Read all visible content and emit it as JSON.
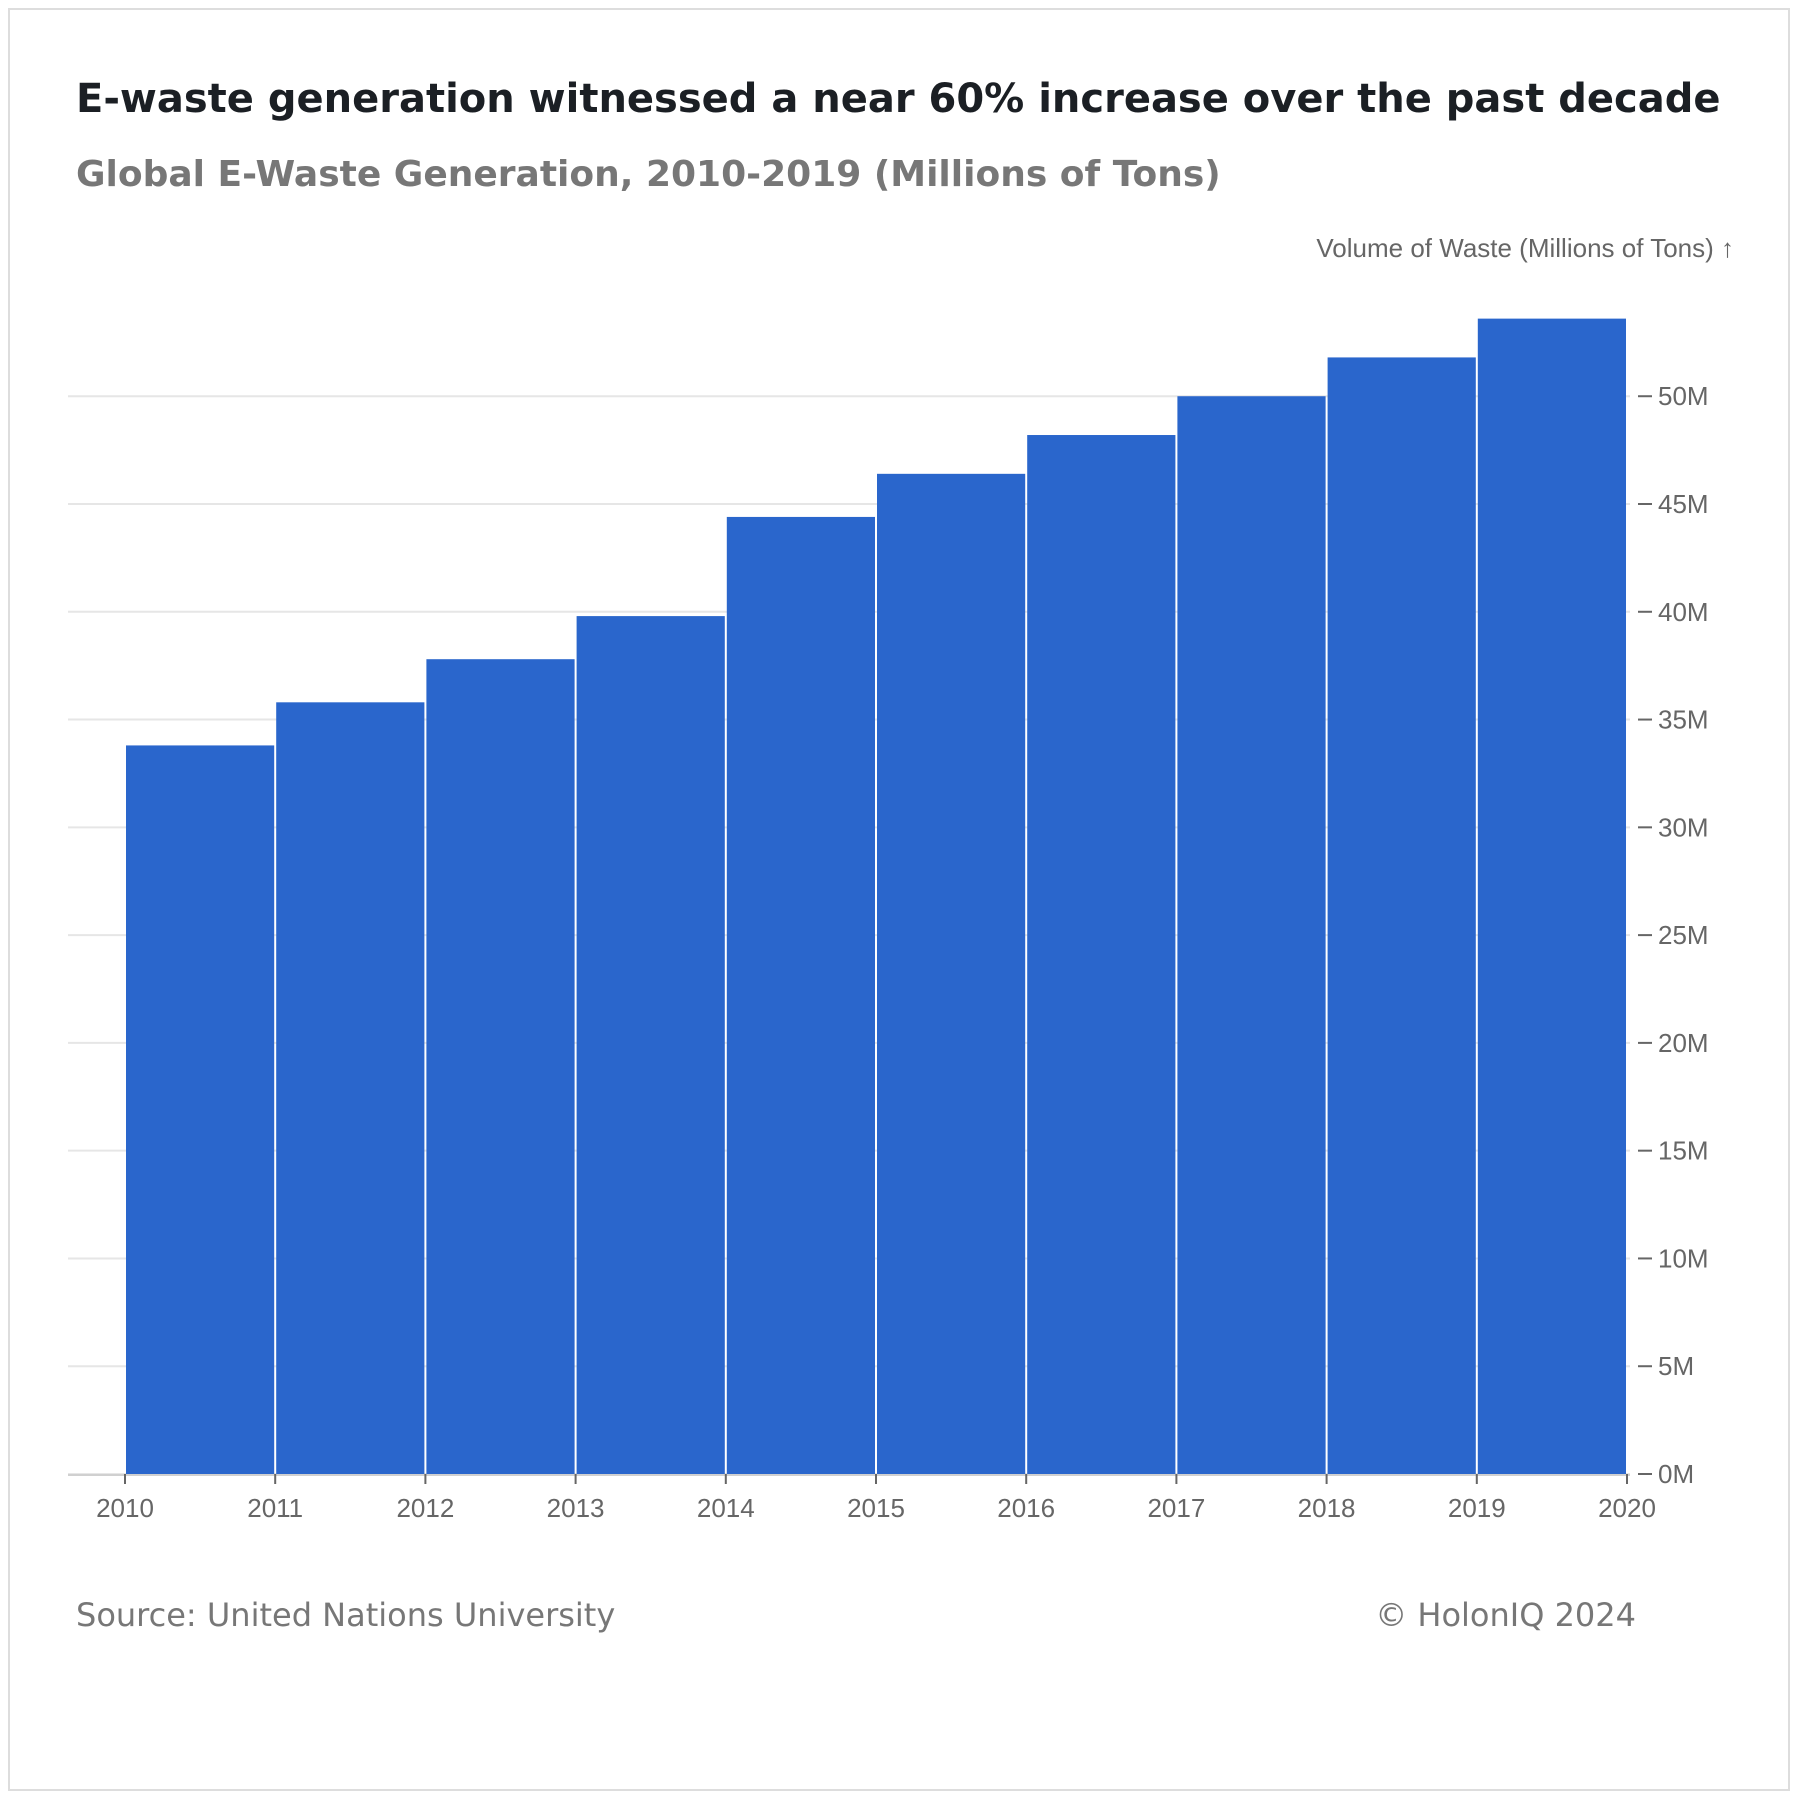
{
  "header": {
    "title": "E-waste generation witnessed a near 60% increase over the past decade",
    "subtitle": "Global E-Waste Generation, 2010-2019 (Millions of Tons)"
  },
  "footer": {
    "source": "Source: United Nations University",
    "copyright": "© HolonIQ 2024"
  },
  "chart_data": {
    "type": "bar",
    "categories": [
      "2010",
      "2011",
      "2012",
      "2013",
      "2014",
      "2015",
      "2016",
      "2017",
      "2018",
      "2019"
    ],
    "values": [
      33.8,
      35.8,
      37.8,
      39.8,
      44.4,
      46.4,
      48.2,
      50.0,
      51.8,
      53.6
    ],
    "x_ticks": [
      "2010",
      "2011",
      "2012",
      "2013",
      "2014",
      "2015",
      "2016",
      "2017",
      "2018",
      "2019",
      "2020"
    ],
    "y_ticks": [
      "0M",
      "5M",
      "10M",
      "15M",
      "20M",
      "25M",
      "30M",
      "35M",
      "40M",
      "45M",
      "50M"
    ],
    "ylabel": "Volume of Waste (Millions of Tons) ↑",
    "ylim": [
      0,
      54
    ],
    "y_axis_position": "right",
    "grid": true,
    "bar_color": "#2a66cc",
    "grid_color": "#e6e6e6",
    "tick_color": "#666666"
  }
}
